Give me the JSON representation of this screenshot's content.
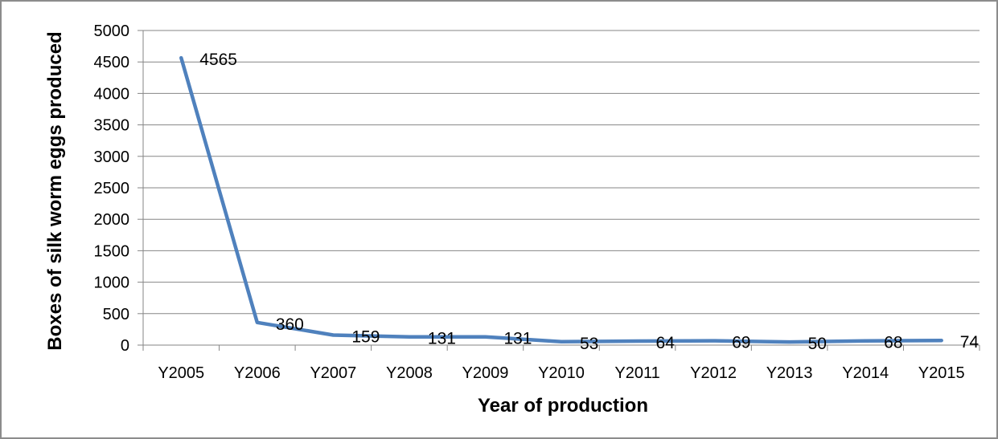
{
  "chart_data": {
    "type": "line",
    "title": "",
    "xlabel": "Year of production",
    "ylabel": "Boxes of silk worm eggs produced",
    "categories": [
      "Y2005",
      "Y2006",
      "Y2007",
      "Y2008",
      "Y2009",
      "Y2010",
      "Y2011",
      "Y2012",
      "Y2013",
      "Y2014",
      "Y2015"
    ],
    "series": [
      {
        "values": [
          4565,
          360,
          159,
          131,
          131,
          53,
          64,
          69,
          50,
          68,
          74
        ],
        "data_labels": [
          "4565",
          "360",
          "159",
          "131",
          "131",
          "53",
          "64",
          "69",
          "50",
          "68",
          "74"
        ]
      }
    ],
    "yticks": [
      "0",
      "500",
      "1000",
      "1500",
      "2000",
      "2500",
      "3000",
      "3500",
      "4000",
      "4500",
      "5000"
    ],
    "ylim": [
      0,
      5000
    ],
    "grid": true,
    "legend": "none",
    "colors": {
      "series": "#4f81bd",
      "grid": "#868686",
      "axis": "#868686",
      "frame": "#8c8c8c"
    }
  }
}
